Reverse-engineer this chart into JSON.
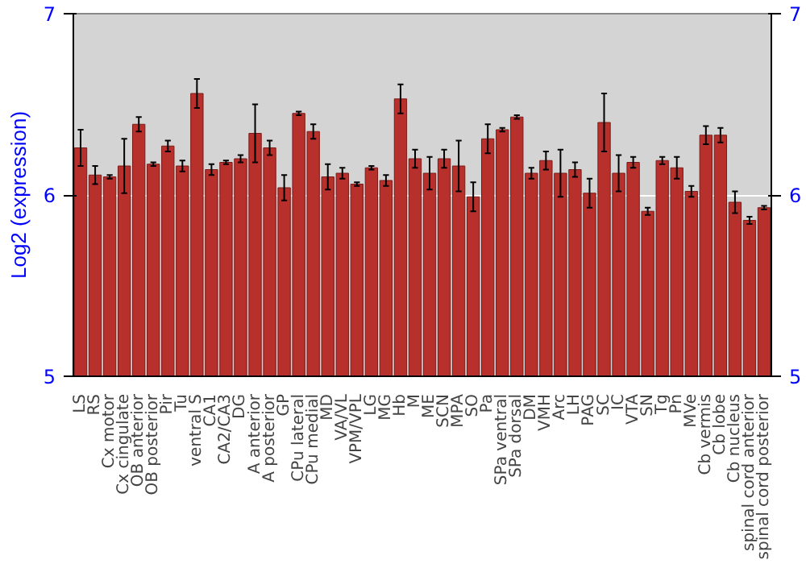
{
  "chart_data": {
    "type": "bar",
    "ylabel": "Log2 (expression)",
    "categories": [
      "LS",
      "RS",
      "Cx motor",
      "Cx cingulate",
      "OB anterior",
      "OB posterior",
      "Pir",
      "Tu",
      "ventral S",
      "CA1",
      "CA2/CA3",
      "DG",
      "A anterior",
      "A posterior",
      "GP",
      "CPu lateral",
      "CPu medial",
      "MD",
      "VA/VL",
      "VPM/VPL",
      "LG",
      "MG",
      "Hb",
      "M",
      "ME",
      "SCN",
      "MPA",
      "SO",
      "Pa",
      "SPa ventral",
      "SPa dorsal",
      "DM",
      "VMH",
      "Arc",
      "LH",
      "PAG",
      "SC",
      "IC",
      "VTA",
      "SN",
      "Tg",
      "Pn",
      "MVe",
      "Cb vermis",
      "Cb lobe",
      "Cb nucleus",
      "spinal cord anterior",
      "spinal cord posterior"
    ],
    "values": [
      6.26,
      6.11,
      6.1,
      6.16,
      6.39,
      6.17,
      6.27,
      6.16,
      6.56,
      6.14,
      6.18,
      6.2,
      6.34,
      6.26,
      6.04,
      6.45,
      6.35,
      6.1,
      6.12,
      6.06,
      6.15,
      6.08,
      6.53,
      6.2,
      6.12,
      6.2,
      6.16,
      5.99,
      6.31,
      6.36,
      6.43,
      6.12,
      6.19,
      6.12,
      6.14,
      6.01,
      6.4,
      6.12,
      6.18,
      5.91,
      6.19,
      6.15,
      6.02,
      6.33,
      6.33,
      5.96,
      5.86,
      5.93
    ],
    "errors": [
      0.1,
      0.05,
      0.01,
      0.15,
      0.04,
      0.01,
      0.03,
      0.03,
      0.08,
      0.03,
      0.01,
      0.02,
      0.16,
      0.04,
      0.07,
      0.01,
      0.04,
      0.07,
      0.03,
      0.01,
      0.01,
      0.03,
      0.08,
      0.05,
      0.09,
      0.05,
      0.14,
      0.08,
      0.08,
      0.01,
      0.01,
      0.03,
      0.05,
      0.13,
      0.04,
      0.08,
      0.16,
      0.1,
      0.03,
      0.02,
      0.02,
      0.06,
      0.03,
      0.05,
      0.04,
      0.06,
      0.02,
      0.01
    ],
    "color": "#b8302c",
    "ylim": [
      5,
      7
    ],
    "yticks": [
      5,
      6,
      7
    ],
    "y2lim": [
      5,
      7
    ],
    "y2ticks": [
      5,
      6,
      7
    ],
    "grid": "y"
  }
}
